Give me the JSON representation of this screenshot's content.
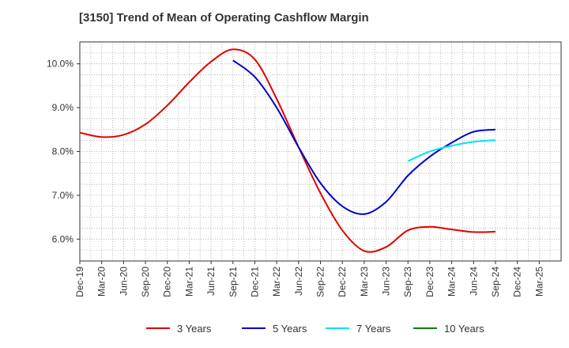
{
  "chart_data": {
    "type": "line",
    "title": "[3150]  Trend of Mean of Operating Cashflow Margin",
    "xlabel": "",
    "ylabel": "",
    "x": [
      "Dec-19",
      "Mar-20",
      "Jun-20",
      "Sep-20",
      "Dec-20",
      "Mar-21",
      "Jun-21",
      "Sep-21",
      "Dec-21",
      "Mar-22",
      "Jun-22",
      "Sep-22",
      "Dec-22",
      "Mar-23",
      "Jun-23",
      "Sep-23",
      "Dec-23",
      "Mar-24",
      "Jun-24",
      "Sep-24",
      "Dec-24",
      "Mar-25"
    ],
    "y_ticks": [
      "6.0%",
      "7.0%",
      "8.0%",
      "9.0%",
      "10.0%"
    ],
    "y_tick_values": [
      6.0,
      7.0,
      8.0,
      9.0,
      10.0
    ],
    "ylim": [
      5.5,
      10.5
    ],
    "grid": true,
    "legend_position": "bottom",
    "series": [
      {
        "name": "3 Years",
        "color": "#e00000",
        "values": [
          8.43,
          8.33,
          8.38,
          8.62,
          9.05,
          9.58,
          10.05,
          10.33,
          10.1,
          9.2,
          8.1,
          7.05,
          6.2,
          5.73,
          5.82,
          6.2,
          6.28,
          6.22,
          6.16,
          6.17,
          null,
          null
        ]
      },
      {
        "name": "5 Years",
        "color": "#0000cc",
        "values": [
          null,
          null,
          null,
          null,
          null,
          null,
          null,
          10.08,
          9.7,
          9.0,
          8.1,
          7.28,
          6.75,
          6.57,
          6.85,
          7.45,
          7.88,
          8.2,
          8.45,
          8.5,
          null,
          null
        ]
      },
      {
        "name": "7 Years",
        "color": "#00e5ee",
        "values": [
          null,
          null,
          null,
          null,
          null,
          null,
          null,
          null,
          null,
          null,
          null,
          null,
          null,
          null,
          null,
          7.78,
          8.0,
          8.13,
          8.22,
          8.26,
          null,
          null
        ]
      },
      {
        "name": "10 Years",
        "color": "#008000",
        "values": [
          null,
          null,
          null,
          null,
          null,
          null,
          null,
          null,
          null,
          null,
          null,
          null,
          null,
          null,
          null,
          null,
          null,
          null,
          null,
          null,
          null,
          null
        ]
      }
    ]
  }
}
